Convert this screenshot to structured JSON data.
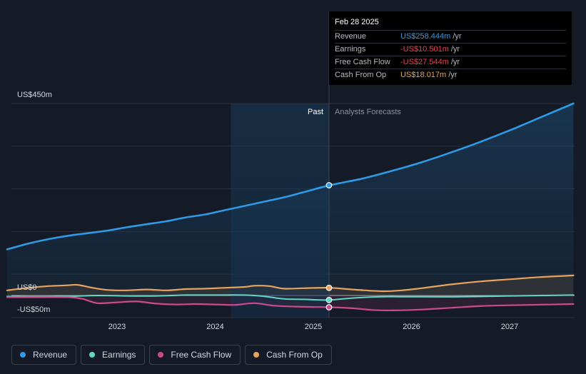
{
  "tooltip": {
    "date": "Feb 28 2025",
    "rows": [
      {
        "label": "Revenue",
        "value": "US$258.444m",
        "unit": "/yr",
        "color": "#2f9ae5"
      },
      {
        "label": "Earnings",
        "value": "-US$10.501m",
        "unit": "/yr",
        "color": "#f0414f"
      },
      {
        "label": "Free Cash Flow",
        "value": "-US$27.544m",
        "unit": "/yr",
        "color": "#f0414f"
      },
      {
        "label": "Cash From Op",
        "value": "US$18.017m",
        "unit": "/yr",
        "color": "#e9a35a"
      }
    ]
  },
  "legend": [
    {
      "label": "Revenue",
      "color": "#2f9ae5"
    },
    {
      "label": "Earnings",
      "color": "#5fd9c4"
    },
    {
      "label": "Free Cash Flow",
      "color": "#cc4a8b"
    },
    {
      "label": "Cash From Op",
      "color": "#e9a35a"
    }
  ],
  "chart_data": {
    "type": "line",
    "y_ticks": [
      {
        "value": 450,
        "label": "US$450m"
      },
      {
        "value": 0,
        "label": "US$0"
      },
      {
        "value": -50,
        "label": "-US$50m"
      }
    ],
    "ylim": [
      -50,
      450
    ],
    "x_ticks": [
      {
        "value": 2023.0,
        "label": "2023"
      },
      {
        "value": 2024.0,
        "label": "2024"
      },
      {
        "value": 2025.0,
        "label": "2025"
      },
      {
        "value": 2026.0,
        "label": "2026"
      },
      {
        "value": 2027.0,
        "label": "2027"
      }
    ],
    "xlim": [
      2021.8,
      2027.65
    ],
    "past_label": "Past",
    "forecast_label": "Analysts Forecasts",
    "past_start": 2024.16,
    "divider": 2025.16,
    "series": [
      {
        "name": "Revenue",
        "color": "#2f9ae5",
        "width": 2.6,
        "fill": true,
        "points": [
          [
            2021.88,
            108
          ],
          [
            2022.1,
            122
          ],
          [
            2022.3,
            132
          ],
          [
            2022.5,
            140
          ],
          [
            2022.7,
            146
          ],
          [
            2022.9,
            152
          ],
          [
            2023.1,
            160
          ],
          [
            2023.3,
            167
          ],
          [
            2023.5,
            174
          ],
          [
            2023.7,
            183
          ],
          [
            2023.9,
            190
          ],
          [
            2024.1,
            200
          ],
          [
            2024.3,
            210
          ],
          [
            2024.5,
            220
          ],
          [
            2024.7,
            230
          ],
          [
            2024.9,
            242
          ],
          [
            2025.16,
            258
          ],
          [
            2025.5,
            274
          ],
          [
            2025.8,
            292
          ],
          [
            2026.1,
            312
          ],
          [
            2026.4,
            335
          ],
          [
            2026.7,
            360
          ],
          [
            2027.0,
            387
          ],
          [
            2027.3,
            416
          ],
          [
            2027.65,
            450
          ]
        ]
      },
      {
        "name": "Cash From Op",
        "color": "#e9a35a",
        "width": 2.2,
        "fill": true,
        "points": [
          [
            2021.88,
            12
          ],
          [
            2022.1,
            18
          ],
          [
            2022.3,
            22
          ],
          [
            2022.5,
            24
          ],
          [
            2022.6,
            25
          ],
          [
            2022.75,
            18
          ],
          [
            2022.9,
            13
          ],
          [
            2023.1,
            12
          ],
          [
            2023.3,
            14
          ],
          [
            2023.5,
            12
          ],
          [
            2023.7,
            15
          ],
          [
            2023.9,
            16
          ],
          [
            2024.1,
            18
          ],
          [
            2024.3,
            20
          ],
          [
            2024.4,
            23
          ],
          [
            2024.55,
            22
          ],
          [
            2024.7,
            16
          ],
          [
            2024.9,
            17
          ],
          [
            2025.16,
            18
          ],
          [
            2025.4,
            14
          ],
          [
            2025.7,
            10
          ],
          [
            2025.9,
            12
          ],
          [
            2026.1,
            17
          ],
          [
            2026.4,
            26
          ],
          [
            2026.7,
            33
          ],
          [
            2027.0,
            38
          ],
          [
            2027.3,
            43
          ],
          [
            2027.65,
            47
          ]
        ]
      },
      {
        "name": "Earnings",
        "color": "#5fd9c4",
        "width": 2.0,
        "fill": false,
        "points": [
          [
            2021.88,
            -2
          ],
          [
            2022.2,
            -3
          ],
          [
            2022.5,
            -2
          ],
          [
            2022.8,
            0
          ],
          [
            2023.1,
            -1
          ],
          [
            2023.4,
            -1
          ],
          [
            2023.7,
            1
          ],
          [
            2024.0,
            1
          ],
          [
            2024.3,
            1
          ],
          [
            2024.5,
            -2
          ],
          [
            2024.7,
            -8
          ],
          [
            2024.9,
            -9
          ],
          [
            2025.16,
            -10.5
          ],
          [
            2025.4,
            -6
          ],
          [
            2025.7,
            -3
          ],
          [
            2026.0,
            -3
          ],
          [
            2026.5,
            -3
          ],
          [
            2027.0,
            -1
          ],
          [
            2027.65,
            1
          ]
        ]
      },
      {
        "name": "Free Cash Flow",
        "color": "#cc4a8b",
        "width": 2.2,
        "fill": true,
        "points": [
          [
            2021.88,
            -4
          ],
          [
            2022.2,
            -4
          ],
          [
            2022.5,
            -4
          ],
          [
            2022.65,
            -8
          ],
          [
            2022.8,
            -18
          ],
          [
            2023.0,
            -16
          ],
          [
            2023.2,
            -14
          ],
          [
            2023.4,
            -19
          ],
          [
            2023.6,
            -21
          ],
          [
            2023.8,
            -20
          ],
          [
            2024.0,
            -21
          ],
          [
            2024.2,
            -22
          ],
          [
            2024.4,
            -18
          ],
          [
            2024.6,
            -24
          ],
          [
            2024.8,
            -26
          ],
          [
            2025.0,
            -27
          ],
          [
            2025.16,
            -27.5
          ],
          [
            2025.4,
            -30
          ],
          [
            2025.6,
            -34
          ],
          [
            2025.8,
            -35
          ],
          [
            2026.1,
            -33
          ],
          [
            2026.4,
            -29
          ],
          [
            2026.7,
            -25
          ],
          [
            2027.0,
            -23
          ],
          [
            2027.65,
            -20
          ]
        ]
      }
    ],
    "markers": [
      {
        "series": "Revenue",
        "x": 2025.16,
        "y": 258.444
      },
      {
        "series": "Cash From Op",
        "x": 2025.16,
        "y": 18.017
      },
      {
        "series": "Earnings",
        "x": 2025.16,
        "y": -10.501
      },
      {
        "series": "Free Cash Flow",
        "x": 2025.16,
        "y": -27.544
      }
    ]
  }
}
